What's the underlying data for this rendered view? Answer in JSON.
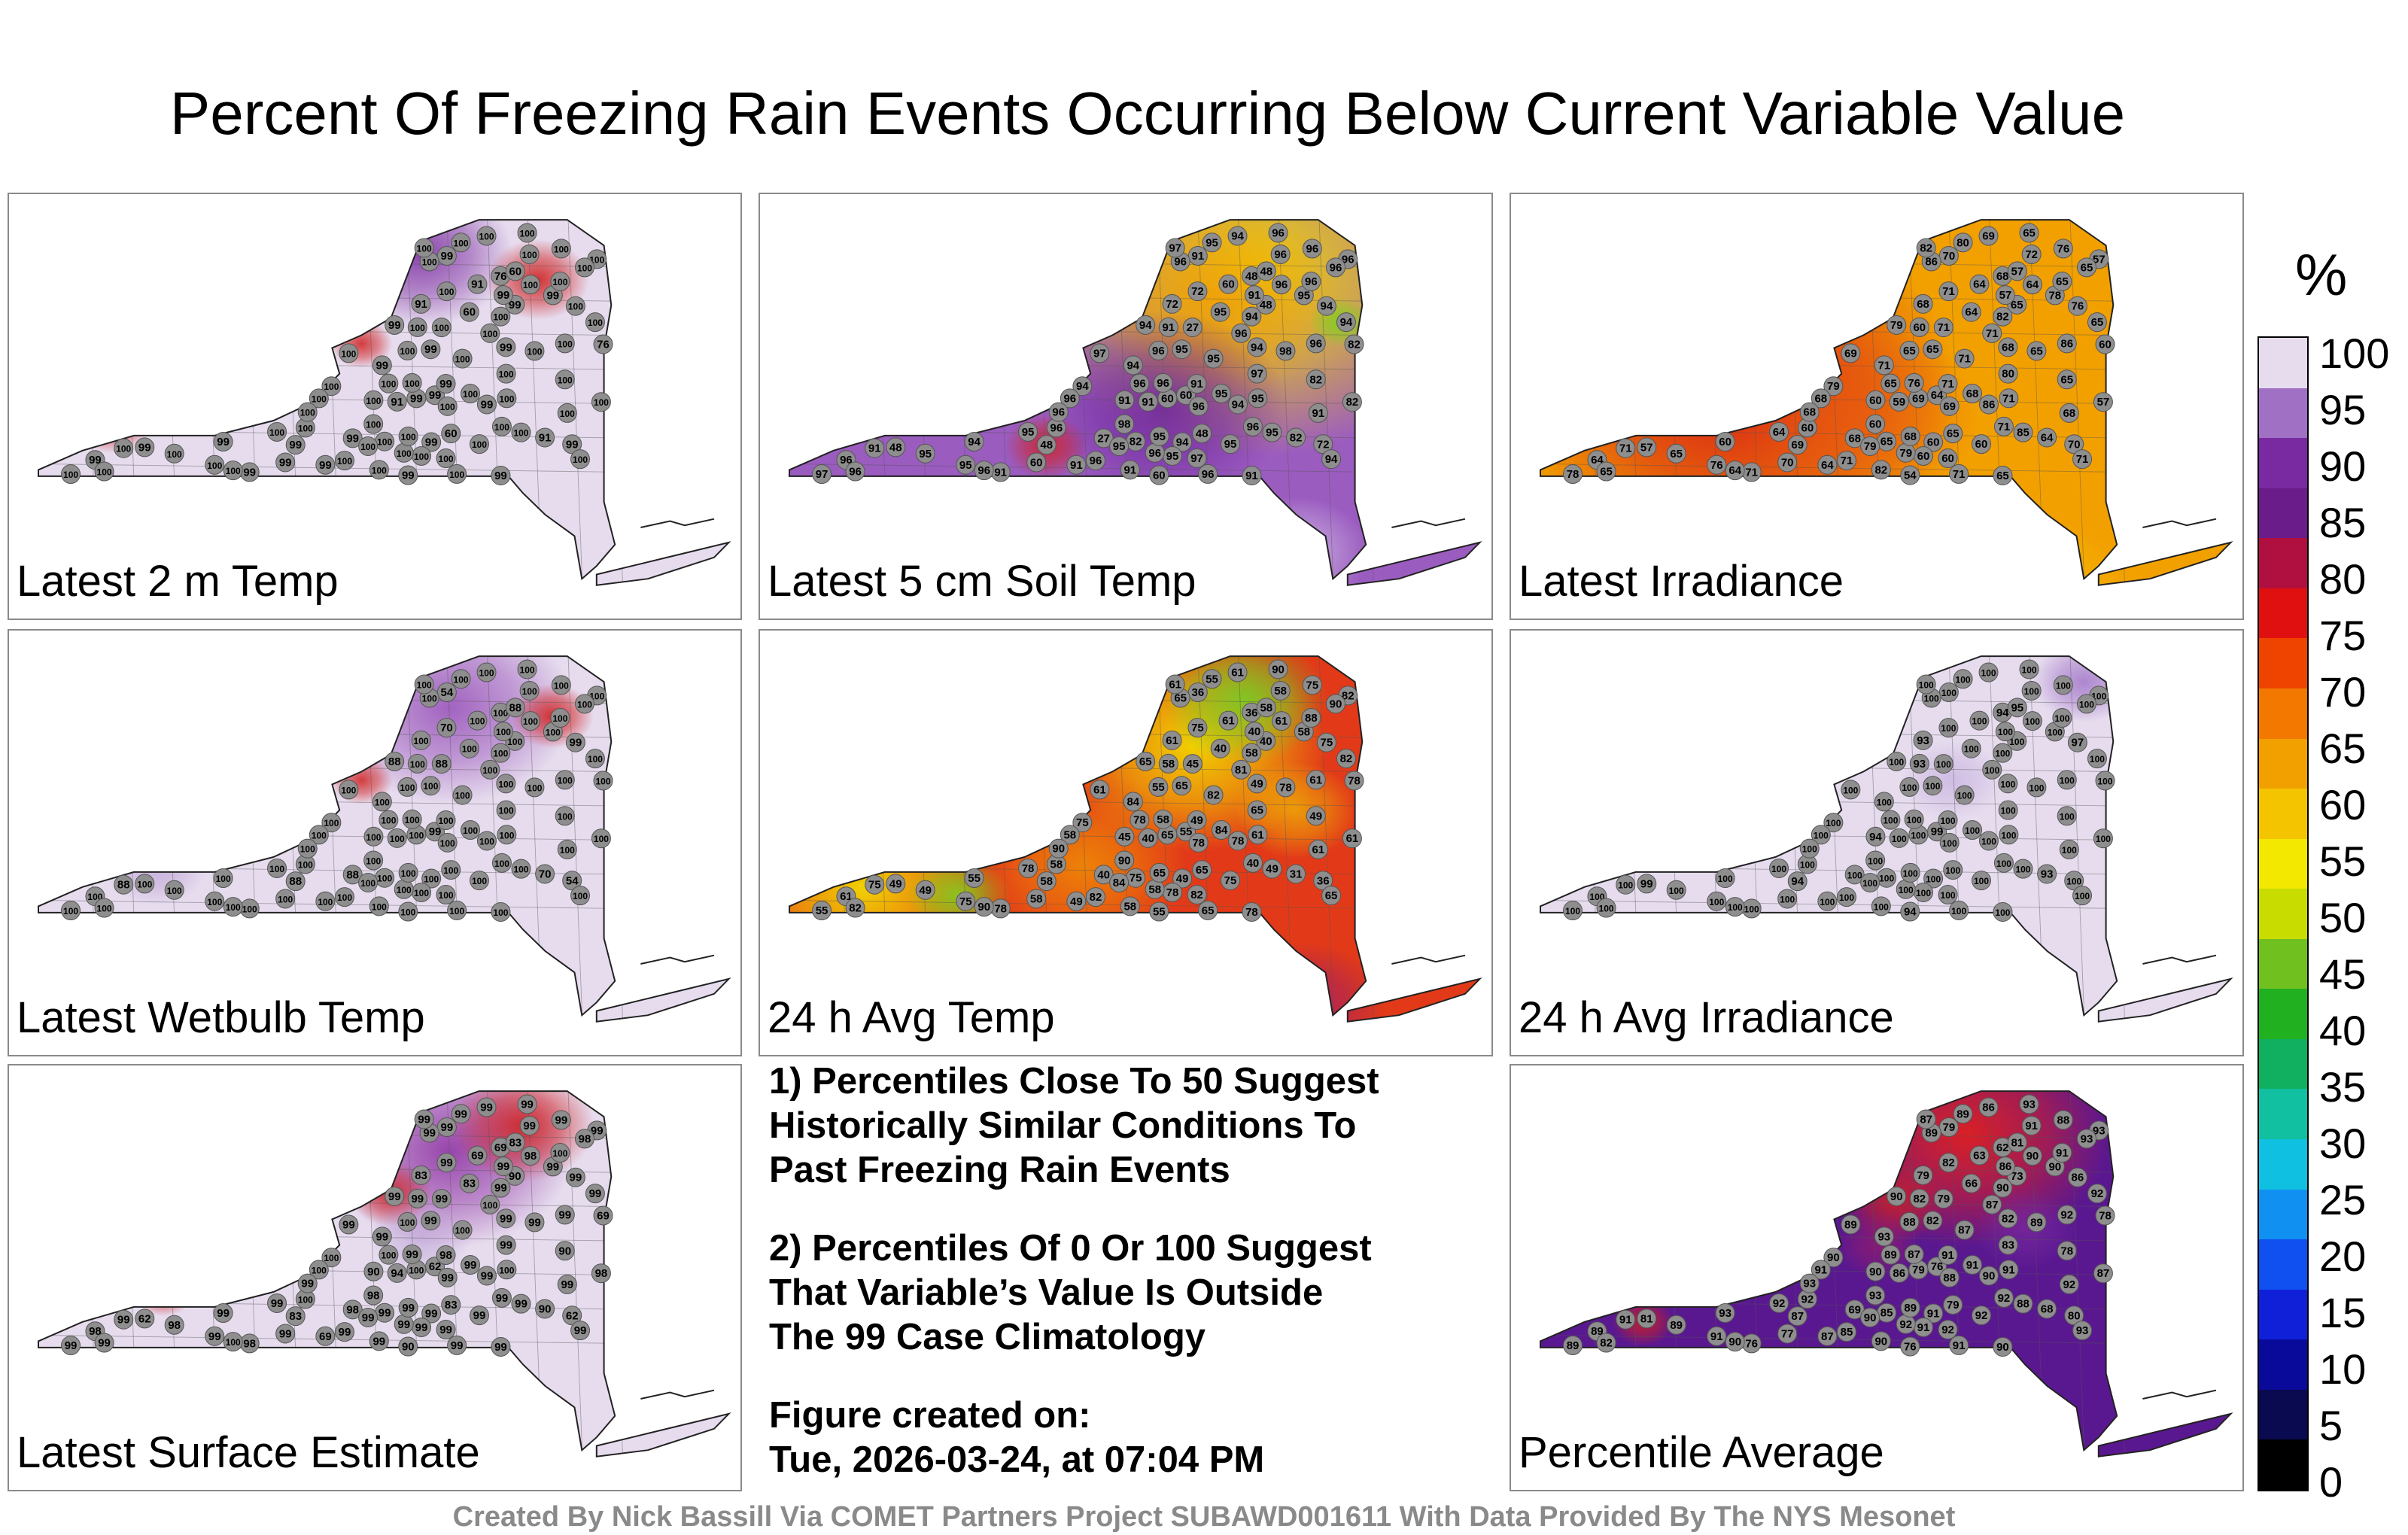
{
  "title": "Percent Of Freezing Rain Events Occurring Below Current Variable Value",
  "panels": [
    {
      "label": "Latest 2 m Temp",
      "base": "#e6dcee",
      "blobs": [
        [
          "#7a2aa0",
          0.56,
          0.14,
          0.09,
          0.85
        ],
        [
          "#cf2020",
          0.72,
          0.2,
          0.05,
          0.9
        ],
        [
          "#cf2020",
          0.14,
          0.53,
          0.04,
          0.9
        ],
        [
          "#cf2020",
          0.48,
          0.35,
          0.03,
          0.85
        ]
      ],
      "stations": [
        "91",
        "99",
        "99",
        "99",
        "60",
        "60",
        "76",
        "91",
        "99",
        "60",
        "76",
        "91",
        "99",
        "99",
        "99",
        "99",
        "100",
        "100",
        "99",
        "99",
        "91",
        "99",
        "100",
        "100",
        "100",
        "99",
        "100",
        "99",
        "100",
        "99",
        "99",
        "100",
        "99",
        "99",
        "100",
        "100",
        "100",
        "99",
        "99",
        "100",
        "99",
        "100",
        "100",
        "100",
        "99",
        "100",
        "99",
        "100",
        "100",
        "100",
        "100",
        "100",
        "99",
        "100",
        "100",
        "100",
        "100",
        "99",
        "100",
        "100",
        "100",
        "100",
        "100",
        "100",
        "100",
        "100",
        "100",
        "100",
        "100",
        "100",
        "100",
        "100",
        "100",
        "100",
        "100",
        "100",
        "100",
        "100",
        "100",
        "100",
        "100",
        "100",
        "100",
        "100",
        "100",
        "100",
        "100",
        "100",
        "100",
        "100",
        "100"
      ]
    },
    {
      "label": "Latest 5 cm Soil Temp",
      "base": "#9b5cc0",
      "blobs": [
        [
          "#f2d800",
          0.67,
          0.18,
          0.23,
          0.95
        ],
        [
          "#f29a00",
          0.62,
          0.25,
          0.12,
          0.8
        ],
        [
          "#6a1e9a",
          0.55,
          0.5,
          0.12,
          0.8
        ],
        [
          "#cf2020",
          0.39,
          0.59,
          0.04,
          0.85
        ],
        [
          "#7fcf20",
          0.79,
          0.3,
          0.03,
          0.9
        ],
        [
          "#d8c8ea",
          0.73,
          0.84,
          0.07,
          0.7
        ]
      ],
      "stations": [
        "72",
        "60",
        "60",
        "48",
        "48",
        "95",
        "48",
        "82",
        "72",
        "48",
        "82",
        "60",
        "48",
        "48",
        "27",
        "91",
        "27",
        "72",
        "60",
        "94",
        "91",
        "91",
        "82",
        "91",
        "95",
        "94",
        "91",
        "96",
        "96",
        "94",
        "91",
        "82",
        "60",
        "95",
        "95",
        "82",
        "91",
        "94",
        "94",
        "94",
        "91",
        "91",
        "95",
        "94",
        "91",
        "94",
        "95",
        "95",
        "96",
        "96",
        "91",
        "95",
        "91",
        "95",
        "96",
        "94",
        "96",
        "94",
        "96",
        "97",
        "96",
        "96",
        "97",
        "96",
        "98",
        "96",
        "97",
        "96",
        "94",
        "96",
        "95",
        "97",
        "96",
        "96",
        "96",
        "95",
        "95",
        "95",
        "96",
        "96",
        "94",
        "95",
        "97",
        "96",
        "96",
        "98",
        "96",
        "96",
        "96",
        "96",
        "95"
      ]
    },
    {
      "label": "Latest Irradiance",
      "base": "#f2a000",
      "blobs": [
        [
          "#d81818",
          0.3,
          0.45,
          0.22,
          0.95
        ],
        [
          "#e85a10",
          0.47,
          0.52,
          0.12,
          0.7
        ],
        [
          "#f2a000",
          0.8,
          0.24,
          0.15,
          0.5
        ],
        [
          "#f6b800",
          0.73,
          0.92,
          0.08,
          0.8
        ]
      ],
      "stations": [
        "68",
        "54",
        "64",
        "57",
        "65",
        "64",
        "68",
        "64",
        "70",
        "57",
        "60",
        "64",
        "69",
        "65",
        "68",
        "70",
        "71",
        "71",
        "70",
        "68",
        "59",
        "64",
        "65",
        "60",
        "71",
        "60",
        "60",
        "64",
        "60",
        "60",
        "65",
        "65",
        "69",
        "65",
        "60",
        "57",
        "71",
        "79",
        "86",
        "76",
        "71",
        "82",
        "71",
        "69",
        "71",
        "71",
        "78",
        "76",
        "71",
        "65",
        "68",
        "65",
        "57",
        "85",
        "79",
        "79",
        "76",
        "71",
        "71",
        "78",
        "71",
        "68",
        "69",
        "69",
        "65",
        "65",
        "80",
        "86",
        "82",
        "86",
        "80",
        "82",
        "72",
        "76",
        "71",
        "79",
        "60",
        "64",
        "57",
        "65",
        "65",
        "68",
        "60",
        "68",
        "65",
        "60",
        "65",
        "64",
        "65",
        "64",
        "68"
      ]
    },
    {
      "label": "Latest Wetbulb Temp",
      "base": "#e6dcee",
      "blobs": [
        [
          "#8a3ab0",
          0.6,
          0.18,
          0.12,
          0.75
        ],
        [
          "#cf2020",
          0.74,
          0.2,
          0.04,
          0.9
        ],
        [
          "#cf2020",
          0.48,
          0.35,
          0.03,
          0.85
        ],
        [
          "#b89ad2",
          0.2,
          0.55,
          0.05,
          0.7
        ]
      ],
      "stations": [
        "100",
        "100",
        "99",
        "100",
        "100",
        "100",
        "100",
        "70",
        "54",
        "88",
        "100",
        "100",
        "88",
        "100",
        "88",
        "54",
        "88",
        "70",
        "100",
        "100",
        "100",
        "100",
        "100",
        "100",
        "100",
        "100",
        "100",
        "100",
        "100",
        "100",
        "100",
        "100",
        "100",
        "100",
        "100",
        "100",
        "88",
        "88",
        "100",
        "99",
        "100",
        "100",
        "100",
        "100",
        "100",
        "100",
        "100",
        "100",
        "100",
        "100",
        "100",
        "100",
        "100",
        "100",
        "100",
        "100",
        "100",
        "100",
        "100",
        "100",
        "100",
        "100",
        "100",
        "100",
        "100",
        "100",
        "100",
        "100",
        "100",
        "100",
        "100",
        "100",
        "100",
        "100",
        "100",
        "100",
        "100",
        "100",
        "100",
        "100",
        "100",
        "100",
        "100",
        "100",
        "100",
        "100",
        "100",
        "100",
        "100",
        "100",
        "100"
      ]
    },
    {
      "label": "24 h Avg Temp",
      "base": "#e23a18",
      "blobs": [
        [
          "#f2d800",
          0.14,
          0.6,
          0.12,
          0.95
        ],
        [
          "#7fcf20",
          0.27,
          0.62,
          0.05,
          0.9
        ],
        [
          "#f2d800",
          0.59,
          0.27,
          0.13,
          0.95
        ],
        [
          "#6fcf28",
          0.66,
          0.16,
          0.08,
          0.85
        ],
        [
          "#f2a000",
          0.44,
          0.55,
          0.1,
          0.7
        ],
        [
          "#9a1c6a",
          0.74,
          0.88,
          0.08,
          0.8
        ],
        [
          "#f2d800",
          0.73,
          0.42,
          0.06,
          0.6
        ]
      ],
      "stations": [
        "61",
        "55",
        "55",
        "49",
        "65",
        "40",
        "36",
        "31",
        "36",
        "58",
        "78",
        "61",
        "58",
        "40",
        "40",
        "36",
        "45",
        "75",
        "58",
        "49",
        "40",
        "49",
        "49",
        "58",
        "61",
        "49",
        "45",
        "61",
        "58",
        "55",
        "78",
        "75",
        "65",
        "65",
        "78",
        "61",
        "75",
        "65",
        "78",
        "75",
        "78",
        "58",
        "82",
        "61",
        "49",
        "65",
        "58",
        "75",
        "65",
        "78",
        "61",
        "49",
        "40",
        "49",
        "58",
        "75",
        "58",
        "84",
        "81",
        "55",
        "40",
        "58",
        "61",
        "78",
        "78",
        "82",
        "65",
        "65",
        "58",
        "61",
        "55",
        "61",
        "58",
        "75",
        "82",
        "84",
        "75",
        "78",
        "82",
        "88",
        "82",
        "84",
        "82",
        "90",
        "90",
        "90",
        "90",
        "90",
        "55",
        "61",
        "65"
      ]
    },
    {
      "label": "24 h Avg Irradiance",
      "base": "#e6dcee",
      "blobs": [
        [
          "#9a6ac4",
          0.78,
          0.12,
          0.05,
          0.75
        ],
        [
          "#c0a8dc",
          0.6,
          0.35,
          0.05,
          0.6
        ]
      ],
      "stations": [
        "93",
        "94",
        "99",
        "99",
        "100",
        "100",
        "94",
        "93",
        "100",
        "95",
        "100",
        "100",
        "94",
        "100",
        "100",
        "100",
        "100",
        "100",
        "100",
        "100",
        "100",
        "100",
        "100",
        "93",
        "100",
        "100",
        "94",
        "100",
        "100",
        "100",
        "100",
        "100",
        "100",
        "100",
        "100",
        "100",
        "100",
        "100",
        "100",
        "97",
        "100",
        "100",
        "100",
        "100",
        "100",
        "100",
        "100",
        "100",
        "100",
        "100",
        "100",
        "100",
        "100",
        "100",
        "100",
        "100",
        "100",
        "100",
        "100",
        "100",
        "100",
        "100",
        "100",
        "100",
        "100",
        "100",
        "100",
        "100",
        "100",
        "100",
        "100",
        "100",
        "100",
        "100",
        "100",
        "100",
        "100",
        "100",
        "100",
        "100",
        "100",
        "100",
        "100",
        "100",
        "100",
        "100",
        "100",
        "100",
        "100",
        "100",
        "100"
      ]
    },
    {
      "label": "Latest Surface Estimate",
      "base": "#e6dcee",
      "blobs": [
        [
          "#8a2aa0",
          0.6,
          0.2,
          0.12,
          0.85
        ],
        [
          "#cf2020",
          0.7,
          0.14,
          0.07,
          0.9
        ],
        [
          "#cf2020",
          0.52,
          0.3,
          0.04,
          0.85
        ],
        [
          "#cf2020",
          0.21,
          0.53,
          0.03,
          0.85
        ],
        [
          "#b89ad2",
          0.56,
          0.4,
          0.05,
          0.6
        ]
      ],
      "stations": [
        "83",
        "90",
        "62",
        "62",
        "83",
        "83",
        "69",
        "90",
        "62",
        "83",
        "69",
        "69",
        "83",
        "90",
        "98",
        "99",
        "99",
        "99",
        "99",
        "99",
        "94",
        "69",
        "90",
        "99",
        "100",
        "99",
        "90",
        "98",
        "100",
        "99",
        "99",
        "99",
        "100",
        "99",
        "99",
        "98",
        "99",
        "99",
        "99",
        "99",
        "98",
        "99",
        "100",
        "99",
        "98",
        "99",
        "99",
        "99",
        "99",
        "100",
        "99",
        "98",
        "99",
        "99",
        "99",
        "100",
        "99",
        "99",
        "100",
        "99",
        "99",
        "100",
        "99",
        "99",
        "99",
        "99",
        "99",
        "99",
        "99",
        "99",
        "99",
        "99",
        "99",
        "99",
        "99",
        "99",
        "99",
        "99",
        "99",
        "100",
        "99",
        "99",
        "99",
        "99",
        "98",
        "98",
        "99",
        "100",
        "100",
        "98",
        "99"
      ]
    },
    {
      "label": "Percentile Average",
      "base": "#5a1890",
      "blobs": [
        [
          "#e02020",
          0.62,
          0.16,
          0.14,
          0.95
        ],
        [
          "#cf2020",
          0.52,
          0.32,
          0.05,
          0.8
        ],
        [
          "#cf2020",
          0.18,
          0.6,
          0.03,
          0.85
        ],
        [
          "#7a2aa0",
          0.7,
          0.38,
          0.05,
          0.7
        ],
        [
          "#9a1c6a",
          0.5,
          0.42,
          0.04,
          0.7
        ]
      ],
      "stations": [
        "79",
        "76",
        "76",
        "81",
        "79",
        "66",
        "62",
        "68",
        "80",
        "81",
        "78",
        "63",
        "87",
        "73",
        "69",
        "79",
        "79",
        "82",
        "77",
        "82",
        "86",
        "87",
        "78",
        "82",
        "91",
        "91",
        "90",
        "89",
        "92",
        "93",
        "90",
        "85",
        "79",
        "82",
        "91",
        "87",
        "91",
        "90",
        "90",
        "86",
        "76",
        "90",
        "87",
        "86",
        "91",
        "93",
        "90",
        "91",
        "91",
        "89",
        "92",
        "89",
        "86",
        "88",
        "92",
        "90",
        "87",
        "93",
        "87",
        "89",
        "92",
        "91",
        "89",
        "88",
        "89",
        "82",
        "83",
        "89",
        "90",
        "92",
        "89",
        "87",
        "91",
        "88",
        "85",
        "90",
        "92",
        "92",
        "93",
        "91",
        "92",
        "91",
        "92",
        "93",
        "93",
        "93",
        "93",
        "90",
        "88",
        "90",
        "89"
      ]
    }
  ],
  "notes": {
    "note1": [
      "1) Percentiles Close To 50 Suggest",
      "Historically Similar Conditions To",
      "Past Freezing Rain Events"
    ],
    "note2": [
      "2) Percentiles Of 0 Or 100 Suggest",
      "That Variable’s Value Is Outside",
      "The 99 Case Climatology"
    ],
    "created": [
      "Figure created on:",
      "Tue, 2026-03-24, at 07:04 PM"
    ]
  },
  "colorbar": {
    "unit": "%",
    "ticks": [
      "100",
      "95",
      "90",
      "85",
      "80",
      "75",
      "70",
      "65",
      "60",
      "55",
      "50",
      "45",
      "40",
      "35",
      "30",
      "25",
      "20",
      "15",
      "10",
      "5",
      "0"
    ],
    "colors": [
      "#000000",
      "#0a0a50",
      "#0a0a9a",
      "#1020d8",
      "#1050f0",
      "#1090f0",
      "#10c0e0",
      "#10c0a0",
      "#10b060",
      "#20b020",
      "#70c020",
      "#c8dc00",
      "#f2e800",
      "#f4c400",
      "#f2a000",
      "#f27800",
      "#ee4400",
      "#e01010",
      "#b01040",
      "#6a1c8a",
      "#7a2aa0",
      "#a070c4",
      "#e6dcee"
    ]
  },
  "credit": "Created By Nick Bassill Via COMET Partners Project SUBAWD001611 With Data Provided By The NYS Mesonet"
}
